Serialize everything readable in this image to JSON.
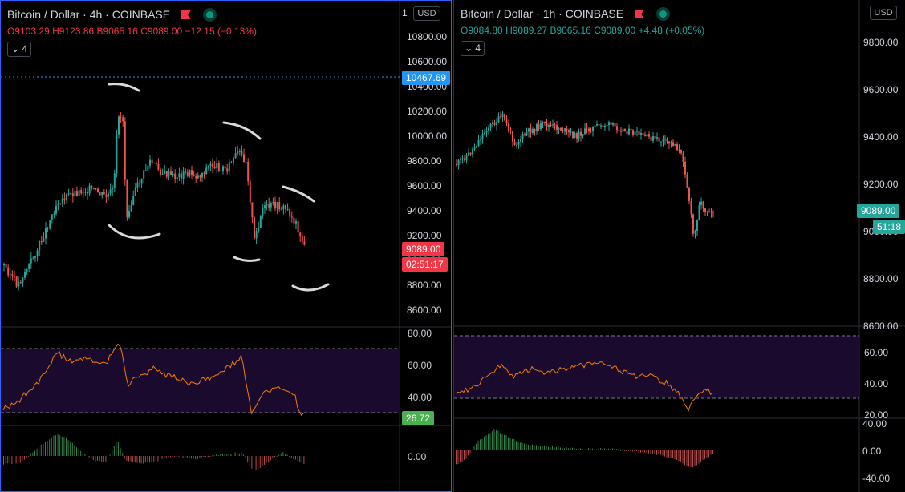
{
  "left_chart": {
    "symbol": "Bitcoin / Dollar",
    "interval": "4h",
    "exchange": "COINBASE",
    "currency_button": "USD",
    "ohlc": {
      "o": "O9103.29",
      "h": "H9123.86",
      "b": "B9065.16",
      "c": "C9089.00",
      "chg": "−12.15 (−0.13%)"
    },
    "ohlc_color": "#f23645",
    "indicators_collapsed": "4",
    "price_axis": [
      "10800.00",
      "10600.00",
      "10400.00",
      "10200.00",
      "10000.00",
      "9800.00",
      "9600.00",
      "9400.00",
      "9200.00",
      "9000.00",
      "8800.00",
      "8600.00"
    ],
    "price_axis_top_partial": "1",
    "hline_label": "10467.69",
    "last_price_label": "9089.00",
    "countdown_label": "02:51:17",
    "rsi_axis": [
      "80.00",
      "60.00",
      "40.00"
    ],
    "rsi_value_label": "26.72",
    "osc_axis": [
      "0.00"
    ],
    "colors": {
      "up": "#26a69a",
      "down": "#ef5350",
      "hline": "#2196f3",
      "rsi": "#f57c00",
      "rsi_band": "#1a0a2e",
      "rsi_badge": "#4caf50"
    }
  },
  "right_chart": {
    "symbol": "Bitcoin / Dollar",
    "interval": "1h",
    "exchange": "COINBASE",
    "currency_button": "USD",
    "ohlc": {
      "o": "O9084.80",
      "h": "H9089.27",
      "b": "B9065.16",
      "c": "C9089.00",
      "chg": "+4.48 (+0.05%)"
    },
    "ohlc_color": "#26a69a",
    "indicators_collapsed": "4",
    "price_axis": [
      "9800.00",
      "9600.00",
      "9400.00",
      "9200.00",
      "9000.00",
      "8800.00",
      "8600.00"
    ],
    "last_price_label": "9089.00",
    "countdown_label": "51:18",
    "rsi_axis": [
      "60.00",
      "40.00",
      "20.00"
    ],
    "osc_axis": [
      "40.00",
      "0.00",
      "-40.00"
    ],
    "colors": {
      "up": "#26a69a",
      "down": "#ef5350",
      "rsi": "#f57c00",
      "rsi_band": "#1a0a2e",
      "last_badge": "#26a69a"
    }
  }
}
